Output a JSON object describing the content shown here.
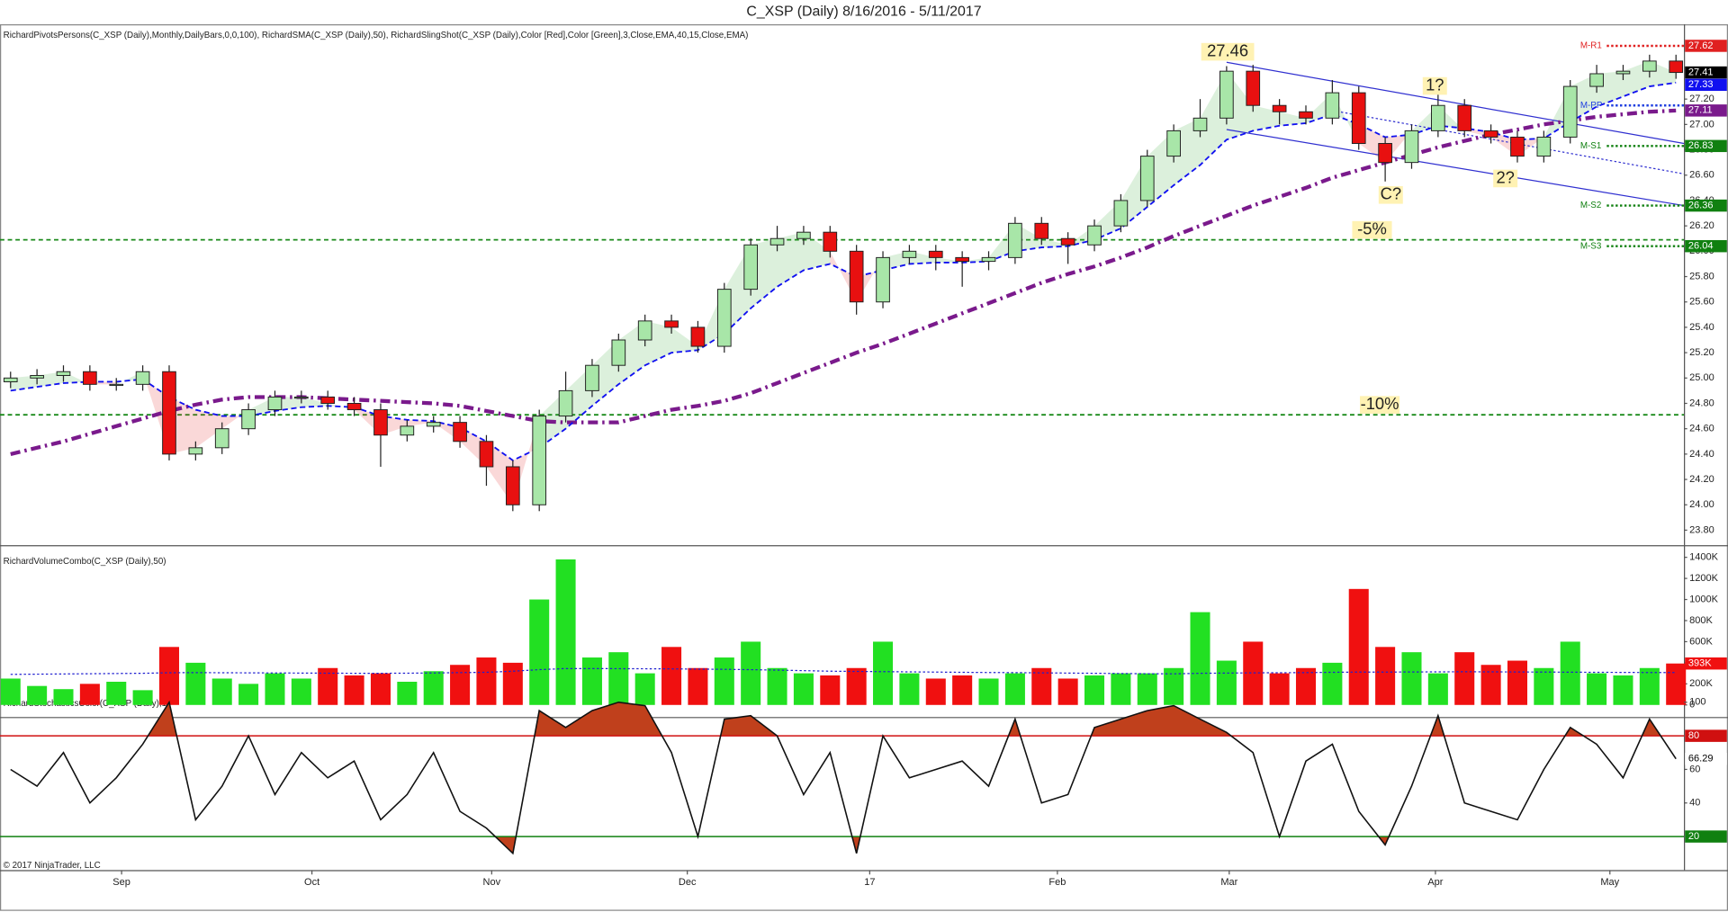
{
  "chart_data": {
    "type": "candlestick",
    "title": "C_XSP (Daily)  8/16/2016 - 5/11/2017",
    "copyright": "© 2017 NinjaTrader, LLC",
    "xlim": [
      -0.4,
      63.3
    ],
    "xticks": [
      {
        "value": 4.2,
        "label": "Sep"
      },
      {
        "value": 11.4,
        "label": "Oct"
      },
      {
        "value": 18.2,
        "label": "Nov"
      },
      {
        "value": 25.6,
        "label": "Dec"
      },
      {
        "value": 32.5,
        "label": "17"
      },
      {
        "value": 39.6,
        "label": "Feb"
      },
      {
        "value": 46.1,
        "label": "Mar"
      },
      {
        "value": 53.9,
        "label": "Apr"
      },
      {
        "value": 60.5,
        "label": "May"
      }
    ],
    "price": {
      "indicator_label": "RichardPivotsPersons(C_XSP (Daily),Monthly,DailyBars,0,0,100), RichardSMA(C_XSP (Daily),50), RichardSlingShot(C_XSP (Daily),Color [Red],Color [Green],3,Close,EMA,40,15,Close,EMA)",
      "ylim": [
        23.69,
        27.79
      ],
      "yticks": [
        {
          "value": 23.8,
          "label": "23.80"
        },
        {
          "value": 24.0,
          "label": "24.00"
        },
        {
          "value": 24.2,
          "label": "24.20"
        },
        {
          "value": 24.4,
          "label": "24.40"
        },
        {
          "value": 24.6,
          "label": "24.60"
        },
        {
          "value": 24.8,
          "label": "24.80"
        },
        {
          "value": 25.0,
          "label": "25.00"
        },
        {
          "value": 25.2,
          "label": "25.20"
        },
        {
          "value": 25.4,
          "label": "25.40"
        },
        {
          "value": 25.6,
          "label": "25.60"
        },
        {
          "value": 25.8,
          "label": "25.80"
        },
        {
          "value": 26.0,
          "label": "26.00"
        },
        {
          "value": 26.2,
          "label": "26.20"
        },
        {
          "value": 26.4,
          "label": "26.40"
        },
        {
          "value": 26.6,
          "label": "26.60"
        },
        {
          "value": 26.8,
          "label": "26.80"
        },
        {
          "value": 27.0,
          "label": "27.00"
        },
        {
          "value": 27.2,
          "label": "27.20"
        }
      ],
      "up_color": "#a8e6a8",
      "down_color": "#e81010",
      "open": [
        24.97,
        25.0,
        25.02,
        25.05,
        24.95,
        24.95,
        25.05,
        24.4,
        24.45,
        24.6,
        24.75,
        24.85,
        24.85,
        24.8,
        24.75,
        24.55,
        24.62,
        24.65,
        24.5,
        24.3,
        24.0,
        24.7,
        24.9,
        25.1,
        25.3,
        25.45,
        25.4,
        25.25,
        25.7,
        26.05,
        26.1,
        26.15,
        26.0,
        25.6,
        25.95,
        26.0,
        25.95,
        25.92,
        25.95,
        26.22,
        26.1,
        26.05,
        26.2,
        26.4,
        26.75,
        26.95,
        27.05,
        27.42,
        27.15,
        27.1,
        27.05,
        27.25,
        26.85,
        26.7,
        26.95,
        27.15,
        26.95,
        26.9,
        26.75,
        26.9,
        27.3,
        27.4,
        27.42,
        27.5
      ],
      "high": [
        25.05,
        25.07,
        25.1,
        25.1,
        25.0,
        25.1,
        25.1,
        24.5,
        24.65,
        24.8,
        24.9,
        24.9,
        24.9,
        24.85,
        24.8,
        24.67,
        24.7,
        24.7,
        24.55,
        24.35,
        24.75,
        25.05,
        25.15,
        25.35,
        25.5,
        25.5,
        25.45,
        25.75,
        26.1,
        26.2,
        26.2,
        26.2,
        26.05,
        26.0,
        26.05,
        26.05,
        26.0,
        26.0,
        26.27,
        26.27,
        26.15,
        26.25,
        26.45,
        26.8,
        27.0,
        27.2,
        27.46,
        27.47,
        27.2,
        27.15,
        27.35,
        27.3,
        26.9,
        27.0,
        27.25,
        27.2,
        27.0,
        26.95,
        26.95,
        27.35,
        27.47,
        27.47,
        27.55,
        27.55
      ],
      "low": [
        24.92,
        24.95,
        24.97,
        24.9,
        24.9,
        24.9,
        24.35,
        24.35,
        24.4,
        24.55,
        24.7,
        24.8,
        24.75,
        24.7,
        24.3,
        24.5,
        24.57,
        24.45,
        24.15,
        23.95,
        23.95,
        24.65,
        24.85,
        25.05,
        25.25,
        25.35,
        25.2,
        25.2,
        25.65,
        26.0,
        26.05,
        25.95,
        25.5,
        25.55,
        25.9,
        25.85,
        25.72,
        25.85,
        25.9,
        26.05,
        25.9,
        26.0,
        26.15,
        26.35,
        26.7,
        26.9,
        27.0,
        27.1,
        27.0,
        27.0,
        27.0,
        26.8,
        26.55,
        26.65,
        26.9,
        26.9,
        26.85,
        26.7,
        26.7,
        26.85,
        27.25,
        27.35,
        27.37,
        27.36
      ],
      "close": [
        25.0,
        25.02,
        25.05,
        24.95,
        24.95,
        25.05,
        24.4,
        24.45,
        24.6,
        24.75,
        24.85,
        24.85,
        24.8,
        24.75,
        24.55,
        24.62,
        24.65,
        24.5,
        24.3,
        24.0,
        24.7,
        24.9,
        25.1,
        25.3,
        25.45,
        25.4,
        25.25,
        25.7,
        26.05,
        26.1,
        26.15,
        26.0,
        25.6,
        25.95,
        26.0,
        25.95,
        25.92,
        25.95,
        26.22,
        26.1,
        26.05,
        26.2,
        26.4,
        26.75,
        26.95,
        27.05,
        27.42,
        27.15,
        27.1,
        27.05,
        27.25,
        26.85,
        26.7,
        26.95,
        27.15,
        26.95,
        26.9,
        26.75,
        26.9,
        27.3,
        27.4,
        27.42,
        27.5,
        27.41
      ],
      "ema": {
        "color": "#1010f0",
        "values": [
          24.9,
          24.93,
          24.96,
          24.97,
          24.97,
          24.99,
          24.85,
          24.75,
          24.7,
          24.7,
          24.74,
          24.77,
          24.78,
          24.77,
          24.7,
          24.67,
          24.66,
          24.61,
          24.5,
          24.35,
          24.45,
          24.6,
          24.78,
          24.95,
          25.1,
          25.2,
          25.22,
          25.35,
          25.55,
          25.72,
          25.85,
          25.9,
          25.8,
          25.85,
          25.9,
          25.91,
          25.91,
          25.92,
          26.0,
          26.03,
          26.04,
          26.09,
          26.18,
          26.35,
          26.52,
          26.68,
          26.88,
          26.95,
          26.99,
          27.01,
          27.08,
          27.0,
          26.9,
          26.92,
          26.99,
          26.97,
          26.94,
          26.88,
          26.89,
          27.02,
          27.14,
          27.22,
          27.3,
          27.33
        ]
      },
      "sma": {
        "color": "#7a1a8c",
        "values": [
          24.4,
          24.45,
          24.5,
          24.56,
          24.62,
          24.68,
          24.74,
          24.79,
          24.83,
          24.85,
          24.85,
          24.85,
          24.84,
          24.83,
          24.82,
          24.81,
          24.8,
          24.78,
          24.74,
          24.7,
          24.66,
          24.65,
          24.65,
          24.65,
          24.7,
          24.75,
          24.78,
          24.82,
          24.88,
          24.96,
          25.04,
          25.12,
          25.2,
          25.27,
          25.35,
          25.43,
          25.51,
          25.59,
          25.67,
          25.75,
          25.82,
          25.88,
          25.95,
          26.03,
          26.12,
          26.2,
          26.28,
          26.36,
          26.43,
          26.5,
          26.58,
          26.64,
          26.7,
          26.76,
          26.82,
          26.87,
          26.92,
          26.96,
          27.0,
          27.03,
          27.06,
          27.08,
          27.1,
          27.11
        ]
      },
      "pivots": [
        {
          "name": "M-R1",
          "value": 27.62,
          "color": "#e02020"
        },
        {
          "name": "M-PP",
          "value": 27.15,
          "color": "#2040e0"
        },
        {
          "name": "M-S1",
          "value": 26.83,
          "color": "#108010"
        },
        {
          "name": "M-S2",
          "value": 26.36,
          "color": "#108010"
        },
        {
          "name": "M-S3",
          "value": 26.04,
          "color": "#108010"
        }
      ],
      "percent_lines": [
        {
          "label": "-5%",
          "value": 26.09
        },
        {
          "label": "-10%",
          "value": 24.71
        }
      ],
      "channels": [
        {
          "x": [
            46,
            63.3
          ],
          "y": [
            27.49,
            26.85
          ]
        },
        {
          "x": [
            50,
            63.3
          ],
          "y": [
            27.11,
            26.61
          ]
        },
        {
          "x": [
            46,
            63.3
          ],
          "y": [
            26.96,
            26.36
          ]
        }
      ],
      "annotations": [
        "27.46",
        "1?",
        "C?",
        "2?"
      ]
    },
    "volume": {
      "indicator_label": "RichardVolumeCombo(C_XSP (Daily),50)",
      "ylim": [
        -104000,
        1494000
      ],
      "yticks": [
        0,
        {
          "value": 200000,
          "label": "200K"
        },
        {
          "value": 400000,
          "label": "400K"
        },
        {
          "value": 600000,
          "label": "600K"
        },
        {
          "value": 800000,
          "label": "800K"
        },
        {
          "value": 1000000,
          "label": "1000K"
        },
        {
          "value": 1200000,
          "label": "1200K"
        },
        {
          "value": 1400000,
          "label": "1400K"
        }
      ],
      "up_color": "#22e022",
      "down_color": "#f01010",
      "values": [
        250000,
        180000,
        150000,
        200000,
        220000,
        140000,
        550000,
        400000,
        250000,
        200000,
        300000,
        250000,
        350000,
        280000,
        300000,
        220000,
        320000,
        380000,
        450000,
        400000,
        1000000,
        1380000,
        450000,
        500000,
        300000,
        550000,
        350000,
        450000,
        600000,
        350000,
        300000,
        280000,
        350000,
        600000,
        300000,
        250000,
        280000,
        250000,
        300000,
        350000,
        250000,
        280000,
        300000,
        300000,
        350000,
        880000,
        420000,
        600000,
        300000,
        350000,
        400000,
        1100000,
        550000,
        500000,
        300000,
        500000,
        380000,
        420000,
        350000,
        600000,
        300000,
        280000,
        350000,
        393000
      ],
      "last_label": "393K",
      "average": {
        "color": "#2020d0",
        "values": [
          290000,
          292000,
          294000,
          296000,
          298000,
          300000,
          305000,
          306000,
          305000,
          304000,
          303000,
          302000,
          301000,
          300000,
          300000,
          301000,
          303000,
          306000,
          310000,
          320000,
          335000,
          345000,
          345000,
          344000,
          343000,
          342000,
          340000,
          338000,
          335000,
          330000,
          325000,
          320000,
          318000,
          316000,
          314000,
          312000,
          310000,
          308000,
          306000,
          304000,
          302000,
          300000,
          298000,
          296000,
          295000,
          300000,
          302000,
          304000,
          305000,
          306000,
          310000,
          312000,
          312000,
          313000,
          314000,
          315000,
          314000,
          313000,
          312000,
          311000,
          310000,
          309000,
          308000,
          307000
        ]
      }
    },
    "stochastic": {
      "indicator_label": "RichardStochasticsColor(C_XSP (Daily),1)",
      "ylim": [
        0,
        105
      ],
      "yticks": [
        40,
        60,
        100
      ],
      "fill_color": "#c0401c",
      "levels": [
        {
          "value": 80,
          "color": "#d01010"
        },
        {
          "value": 20,
          "color": "#108010"
        }
      ],
      "values": [
        60,
        50,
        70,
        40,
        55,
        75,
        100,
        30,
        50,
        80,
        45,
        70,
        55,
        65,
        30,
        45,
        70,
        35,
        25,
        10,
        95,
        85,
        95,
        100,
        98,
        70,
        20,
        90,
        92,
        80,
        45,
        70,
        10,
        80,
        55,
        60,
        65,
        50,
        90,
        40,
        45,
        85,
        90,
        95,
        98,
        90,
        82,
        70,
        20,
        65,
        75,
        35,
        15,
        50,
        92,
        40,
        35,
        30,
        60,
        85,
        75,
        55,
        90,
        66.29
      ]
    }
  }
}
